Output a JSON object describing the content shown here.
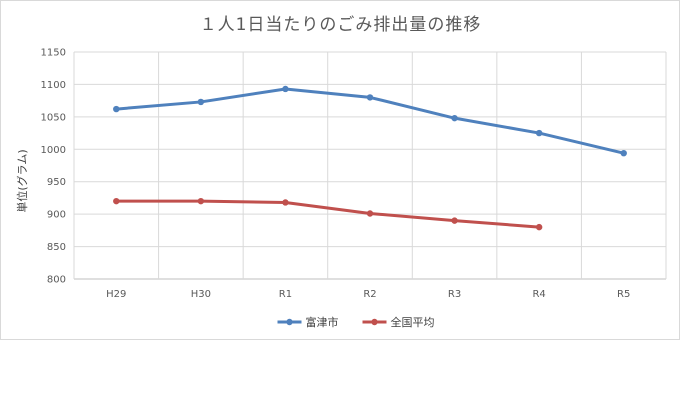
{
  "chart_data": {
    "type": "line",
    "title": "１人1日当たりのごみ排出量の推移",
    "xlabel": "",
    "ylabel": "単位(グラム)",
    "categories": [
      "H29",
      "H30",
      "R1",
      "R2",
      "R3",
      "R4",
      "R5"
    ],
    "ylim": [
      800,
      1150
    ],
    "yticks": [
      800,
      850,
      900,
      950,
      1000,
      1050,
      1100,
      1150
    ],
    "grid": true,
    "legend_position": "bottom",
    "series": [
      {
        "name": "富津市",
        "color": "#4f81bd",
        "values": [
          1062,
          1073,
          1093,
          1080,
          1048,
          1025,
          994
        ]
      },
      {
        "name": "全国平均",
        "color": "#c0504d",
        "values": [
          920,
          920,
          918,
          901,
          890,
          880,
          null
        ]
      }
    ]
  }
}
